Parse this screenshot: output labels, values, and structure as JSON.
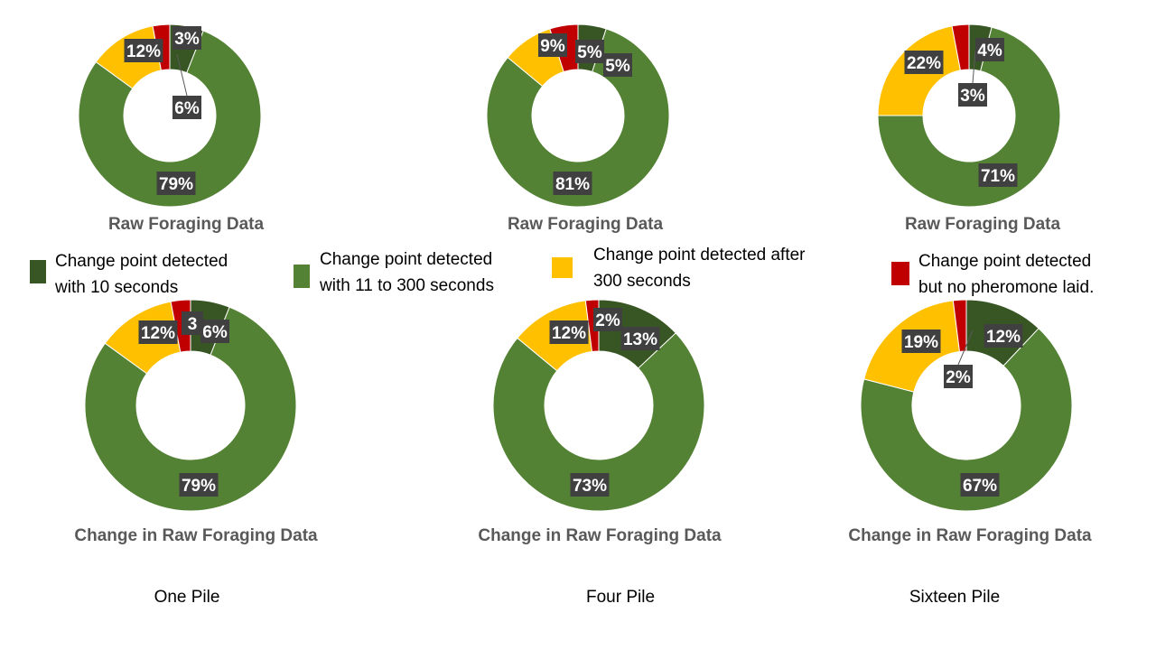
{
  "colors": {
    "cat1": "#375623",
    "cat2": "#548235",
    "cat3": "#FFC000",
    "cat4": "#C00000",
    "label_bg": "#404040",
    "label_text": "#FFFFFF",
    "title_text": "#595959"
  },
  "legend": [
    {
      "lines": [
        "Change point detected",
        "with 10 seconds"
      ]
    },
    {
      "lines": [
        "Change point detected",
        "with 11 to 300 seconds"
      ]
    },
    {
      "lines": [
        "Change point detected after",
        "300 seconds"
      ]
    },
    {
      "lines": [
        "Change point detected",
        "but no pheromone laid."
      ]
    }
  ],
  "piles": [
    "One Pile",
    "Four Pile",
    "Sixteen Pile"
  ],
  "chart_data": [
    {
      "type": "pie",
      "donut": true,
      "title": "Raw Foraging Data",
      "pile": "One Pile",
      "categories": [
        "Change point detected with 10 seconds",
        "Change point detected with 11 to 300 seconds",
        "Change point detected after 300 seconds",
        "Change point detected but no pheromone laid."
      ],
      "values": [
        6,
        79,
        12,
        3
      ],
      "labels": [
        "6%",
        "79%",
        "12%",
        "3%"
      ]
    },
    {
      "type": "pie",
      "donut": true,
      "title": "Raw Foraging Data",
      "pile": "Four Pile",
      "categories": [
        "Change point detected with 10 seconds",
        "Change point detected with 11 to 300 seconds",
        "Change point detected after 300 seconds",
        "Change point detected but no pheromone laid."
      ],
      "values": [
        5,
        81,
        9,
        5
      ],
      "labels": [
        "5%",
        "81%",
        "9%",
        "5%"
      ]
    },
    {
      "type": "pie",
      "donut": true,
      "title": "Raw Foraging Data",
      "pile": "Sixteen Pile",
      "categories": [
        "Change point detected with 10 seconds",
        "Change point detected with 11 to 300 seconds",
        "Change point detected after 300 seconds",
        "Change point detected but no pheromone laid."
      ],
      "values": [
        4,
        71,
        22,
        3
      ],
      "labels": [
        "4%",
        "71%",
        "22%",
        "3%"
      ]
    },
    {
      "type": "pie",
      "donut": true,
      "title": "Change in Raw Foraging Data",
      "pile": "One Pile",
      "categories": [
        "Change point detected with 10 seconds",
        "Change point detected with 11 to 300 seconds",
        "Change point detected after 300 seconds",
        "Change point detected but no pheromone laid."
      ],
      "values": [
        6,
        79,
        12,
        3
      ],
      "labels": [
        "6%",
        "79%",
        "12%",
        "3"
      ]
    },
    {
      "type": "pie",
      "donut": true,
      "title": "Change in Raw Foraging Data",
      "pile": "Four Pile",
      "categories": [
        "Change point detected with 10 seconds",
        "Change point detected with 11 to 300 seconds",
        "Change point detected after 300 seconds",
        "Change point detected but no pheromone laid."
      ],
      "values": [
        13,
        73,
        12,
        2
      ],
      "labels": [
        "13%",
        "73%",
        "12%",
        "2%"
      ]
    },
    {
      "type": "pie",
      "donut": true,
      "title": "Change in Raw Foraging Data",
      "pile": "Sixteen Pile",
      "categories": [
        "Change point detected with 10 seconds",
        "Change point detected with 11 to 300 seconds",
        "Change point detected after 300 seconds",
        "Change point detected but no pheromone laid."
      ],
      "values": [
        12,
        67,
        19,
        2
      ],
      "labels": [
        "12%",
        "67%",
        "19%",
        "2%"
      ]
    }
  ]
}
